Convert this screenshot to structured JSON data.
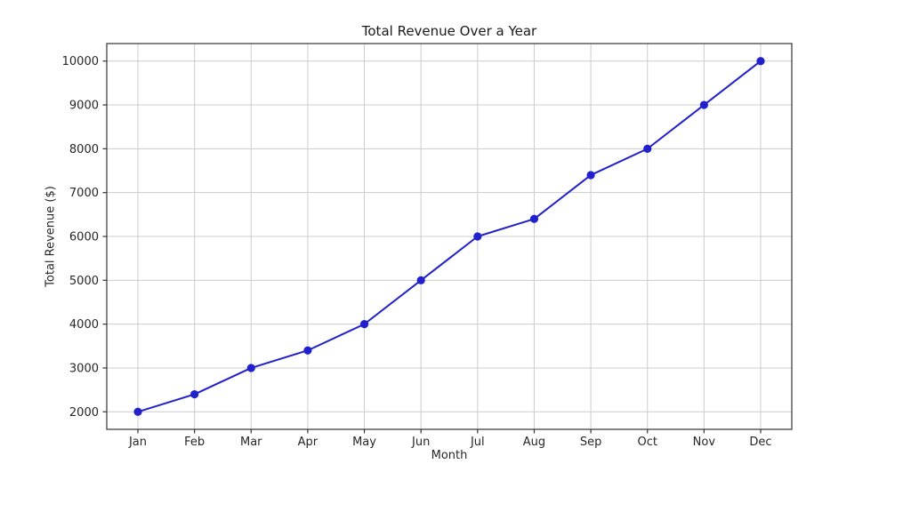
{
  "chart_data": {
    "type": "line",
    "title": "Total Revenue Over a Year",
    "xlabel": "Month",
    "ylabel": "Total Revenue ($)",
    "categories": [
      "Jan",
      "Feb",
      "Mar",
      "Apr",
      "May",
      "Jun",
      "Jul",
      "Aug",
      "Sep",
      "Oct",
      "Nov",
      "Dec"
    ],
    "values": [
      2000,
      2400,
      3000,
      3400,
      4000,
      5000,
      6000,
      6400,
      7400,
      8000,
      9000,
      10000
    ],
    "yticks": [
      2000,
      3000,
      4000,
      5000,
      6000,
      7000,
      8000,
      9000,
      10000
    ],
    "ylim": [
      1600,
      10400
    ],
    "xlim": [
      -0.55,
      11.55
    ],
    "grid": true,
    "legend_position": "none",
    "line_color": "#2020cc",
    "marker": "circle",
    "grid_color": "#cccccc",
    "spine_color": "#333333",
    "tick_label_color": "#262626",
    "background_color": "#ffffff"
  }
}
